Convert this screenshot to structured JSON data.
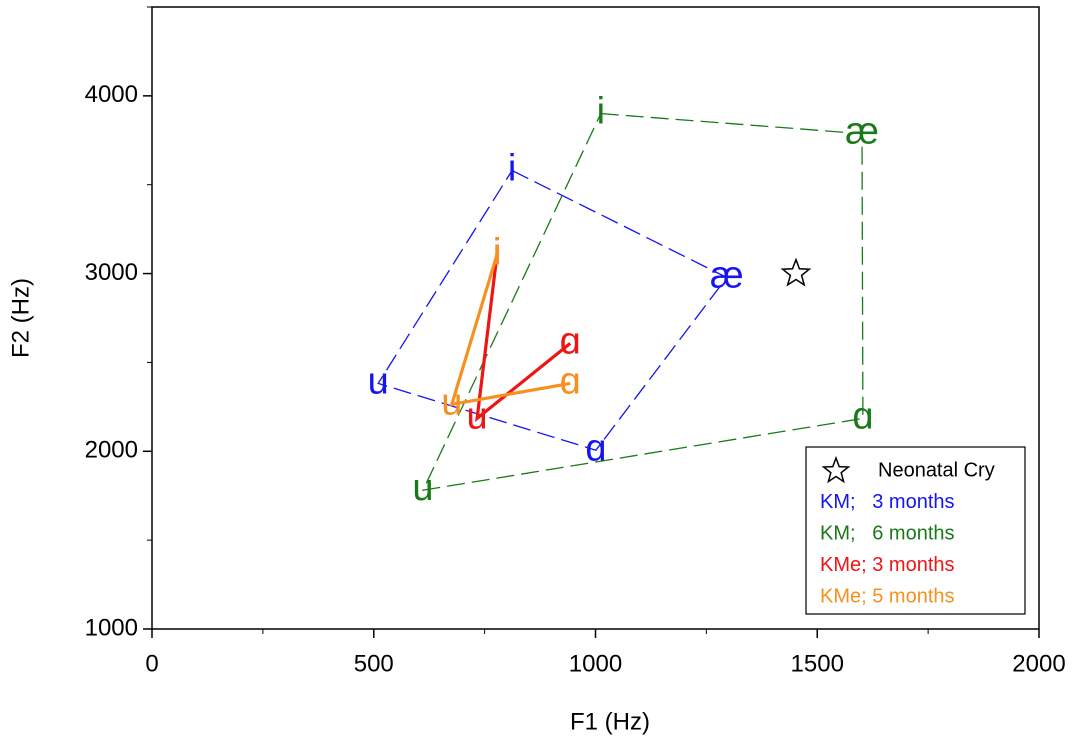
{
  "chart_data": {
    "type": "line",
    "xlabel": "F1 (Hz)",
    "ylabel": "F2 (Hz)",
    "xlim": [
      0,
      2000
    ],
    "xticks": [
      0,
      500,
      1000,
      1500,
      2000
    ],
    "xminorticks": [
      250,
      750,
      1250,
      1750
    ],
    "ylim": [
      1000,
      4500
    ],
    "yticks": [
      1000,
      2000,
      3000,
      4000
    ],
    "yminorticks": [
      1500,
      2500,
      3500,
      4500
    ],
    "legend": "lower right",
    "series": [
      {
        "name": "Neonatal Cry",
        "color": "#000000",
        "marker": "star",
        "x": [
          1452
        ],
        "y": [
          3000
        ]
      },
      {
        "name": "KM;   3 months",
        "color": "#1515f0",
        "style": "dashed",
        "closed": true,
        "labels": [
          "i",
          "æ",
          "ɑ",
          "u"
        ],
        "x": [
          812,
          1296,
          1001,
          510
        ],
        "y": [
          3580,
          2978,
          2006,
          2382
        ]
      },
      {
        "name": "KM;   6 months",
        "color": "#1a7a1a",
        "style": "dashed",
        "closed": true,
        "labels": [
          "i",
          "æ",
          "ɑ",
          "u"
        ],
        "x": [
          1012,
          1601,
          1603,
          611
        ],
        "y": [
          3900,
          3787,
          2185,
          1781
        ]
      },
      {
        "name": "KMe; 3 months",
        "color": "#ee1515",
        "style": "solid",
        "closed": false,
        "labels": [
          "i",
          "u",
          "ɑ"
        ],
        "x": [
          778,
          733,
          943
        ],
        "y": [
          3107,
          2185,
          2607
        ]
      },
      {
        "name": "KMe; 5 months",
        "color": "#f7901e",
        "style": "solid",
        "closed": false,
        "labels": [
          "i",
          "u",
          "ɑ"
        ],
        "x": [
          778,
          676,
          943
        ],
        "y": [
          3107,
          2264,
          2382
        ]
      }
    ]
  }
}
